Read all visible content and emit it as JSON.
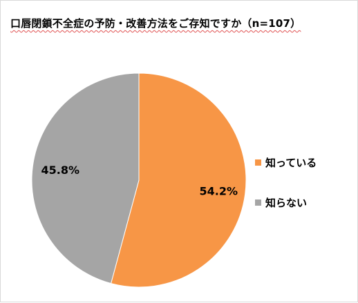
{
  "chart_data": {
    "type": "pie",
    "title": "口唇閉鎖不全症の予防・改善方法をご存知ですか（n=107）",
    "slices": [
      {
        "label": "知っている",
        "value": 54.2,
        "value_label": "54.2%",
        "color": "#f79646"
      },
      {
        "label": "知らない",
        "value": 45.8,
        "value_label": "45.8%",
        "color": "#a5a5a5"
      }
    ],
    "start_angle": "12 o'clock",
    "direction": "clockwise",
    "legend_position": "right"
  }
}
